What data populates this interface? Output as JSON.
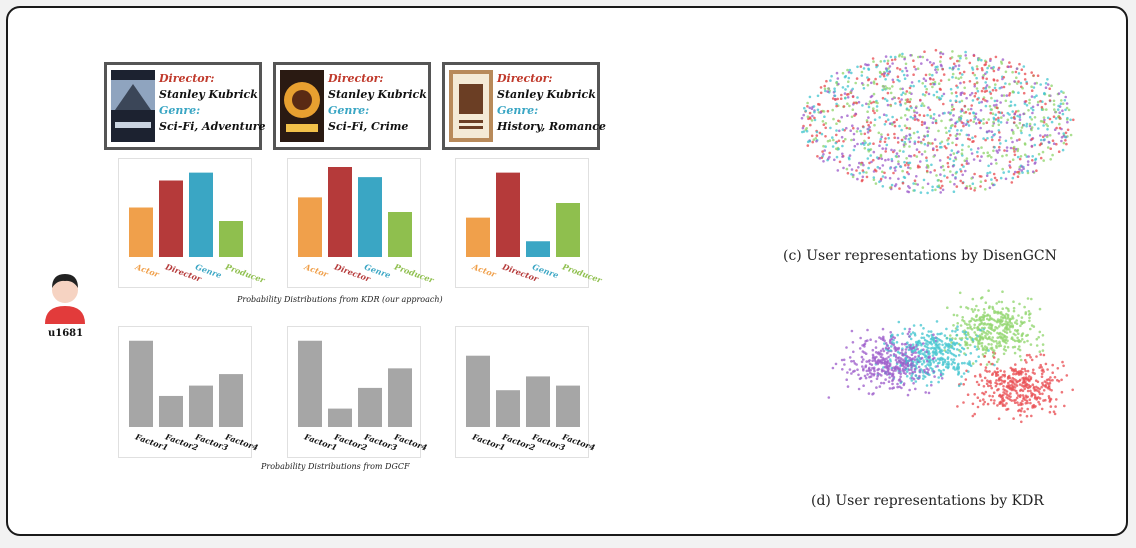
{
  "colors": {
    "actor": "#f0a04b",
    "director": "#b53a3a",
    "genre": "#3aa6c4",
    "producer": "#8fbf4e",
    "factor_bar": "#a6a6a6",
    "cluster_red": "#e8484d",
    "cluster_cyan": "#40c4cf",
    "cluster_purple": "#9b59c9",
    "cluster_green": "#8dd46a"
  },
  "user": {
    "id": "u1681"
  },
  "movies": [
    {
      "director_label": "Director:",
      "director": "Stanley Kubrick",
      "genre_label": "Genre:",
      "genre": "Sci-Fi, Adventure"
    },
    {
      "director_label": "Director:",
      "director": "Stanley Kubrick",
      "genre_label": "Genre:",
      "genre": "Sci-Fi, Crime"
    },
    {
      "director_label": "Director:",
      "director": "Stanley Kubrick",
      "genre_label": "Genre:",
      "genre": "History, Romance"
    }
  ],
  "captions": {
    "kdr": "Probability Distributions from KDR (our approach)",
    "dgcf": "Probability Distributions from DGCF",
    "disengcn": "(c) User representations by DisenGCN",
    "kdr_scatter": "(d) User representations by KDR"
  },
  "chart_data": [
    {
      "type": "bar",
      "title": "",
      "categories": [
        "Actor",
        "Director",
        "Genre",
        "Producer"
      ],
      "values": [
        0.44,
        0.68,
        0.75,
        0.32
      ],
      "ylim": [
        0,
        0.8
      ]
    },
    {
      "type": "bar",
      "title": "",
      "categories": [
        "Actor",
        "Director",
        "Genre",
        "Producer"
      ],
      "values": [
        0.53,
        0.8,
        0.71,
        0.4
      ],
      "ylim": [
        0,
        0.8
      ]
    },
    {
      "type": "bar",
      "title": "",
      "categories": [
        "Actor",
        "Director",
        "Genre",
        "Producer"
      ],
      "values": [
        0.35,
        0.75,
        0.14,
        0.48
      ],
      "ylim": [
        0,
        0.8
      ]
    },
    {
      "type": "bar",
      "title": "",
      "categories": [
        "Factor1",
        "Factor2",
        "Factor3",
        "Factor4"
      ],
      "values": [
        0.75,
        0.27,
        0.36,
        0.46
      ],
      "ylim": [
        0,
        0.8
      ]
    },
    {
      "type": "bar",
      "title": "",
      "categories": [
        "Factor1",
        "Factor2",
        "Factor3",
        "Factor4"
      ],
      "values": [
        0.75,
        0.16,
        0.34,
        0.51
      ],
      "ylim": [
        0,
        0.8
      ]
    },
    {
      "type": "bar",
      "title": "",
      "categories": [
        "Factor1",
        "Factor2",
        "Factor3",
        "Factor4"
      ],
      "values": [
        0.62,
        0.32,
        0.44,
        0.36
      ],
      "ylim": [
        0,
        0.8
      ]
    },
    {
      "type": "scatter",
      "title": "",
      "legend": "none",
      "series": [
        {
          "values": []
        },
        {
          "values": []
        },
        {
          "values": []
        },
        {
          "values": []
        }
      ]
    },
    {
      "type": "scatter",
      "title": "",
      "legend": "none",
      "series": [
        {
          "values": []
        },
        {
          "values": []
        },
        {
          "values": []
        },
        {
          "values": []
        }
      ]
    }
  ]
}
